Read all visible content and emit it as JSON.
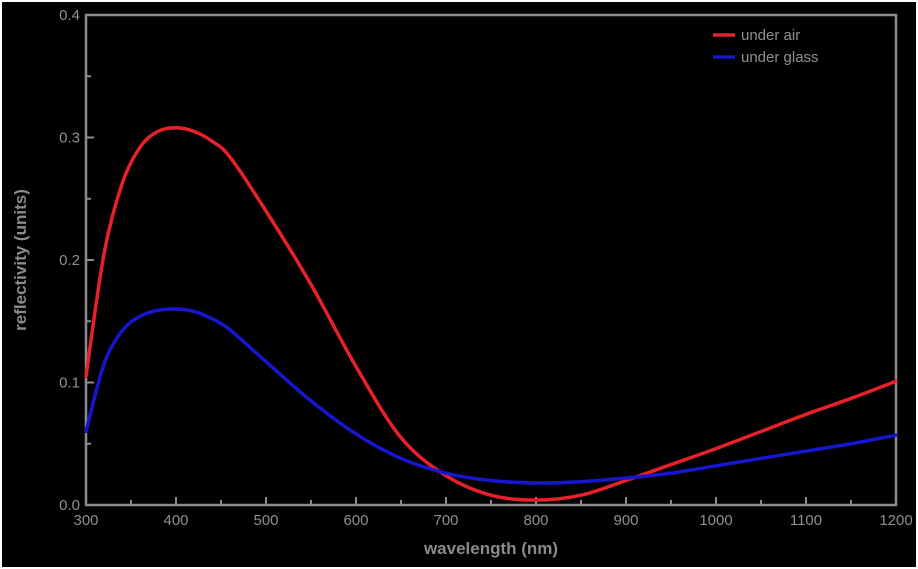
{
  "chart_data": {
    "type": "line",
    "title": "",
    "xlabel": "wavelength (nm)",
    "ylabel": "reflectivity (units)",
    "xlim": [
      300,
      1200
    ],
    "ylim": [
      0,
      0.4
    ],
    "xticks": [
      300,
      400,
      500,
      600,
      700,
      800,
      900,
      1000,
      1100,
      1200
    ],
    "yticks": [
      0.0,
      0.1,
      0.2,
      0.3,
      0.4
    ],
    "xtick_labels": [
      "300",
      "400",
      "500",
      "600",
      "700",
      "800",
      "900",
      "1000",
      "1100",
      "1200"
    ],
    "ytick_labels": [
      "0.0",
      "0.1",
      "0.2",
      "0.3",
      "0.4"
    ],
    "grid": false,
    "legend_position": "top-right",
    "background": "#000000",
    "axis_color": "#8c8c8c",
    "x": [
      300,
      320,
      340,
      360,
      380,
      400,
      420,
      440,
      460,
      500,
      550,
      600,
      650,
      700,
      750,
      800,
      850,
      900,
      950,
      1000,
      1050,
      1100,
      1150,
      1200
    ],
    "series": [
      {
        "name": "under air",
        "color": "#e8202a",
        "values": [
          0.105,
          0.205,
          0.262,
          0.292,
          0.305,
          0.308,
          0.305,
          0.297,
          0.284,
          0.24,
          0.18,
          0.113,
          0.055,
          0.024,
          0.008,
          0.004,
          0.008,
          0.02,
          0.033,
          0.046,
          0.06,
          0.074,
          0.087,
          0.101
        ]
      },
      {
        "name": "under glass",
        "color": "#1616d0",
        "values": [
          0.06,
          0.115,
          0.142,
          0.154,
          0.159,
          0.16,
          0.158,
          0.152,
          0.143,
          0.117,
          0.085,
          0.058,
          0.038,
          0.026,
          0.02,
          0.018,
          0.019,
          0.022,
          0.026,
          0.032,
          0.038,
          0.044,
          0.05,
          0.057
        ]
      }
    ]
  }
}
